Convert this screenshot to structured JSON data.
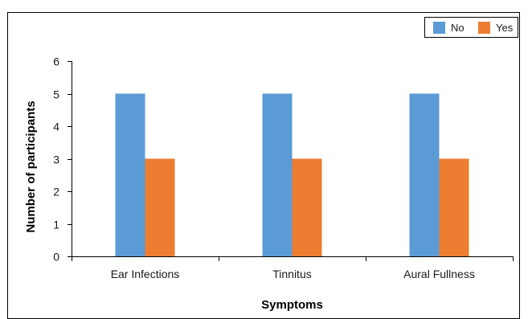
{
  "colors": {
    "frame": "#000000",
    "axis": "#000000",
    "series_no": "#5B9BD5",
    "series_yes": "#ED7D31"
  },
  "chart_data": {
    "type": "bar",
    "categories": [
      "Ear Infections",
      "Tinnitus",
      "Aural Fullness"
    ],
    "series": [
      {
        "name": "No",
        "values": [
          5,
          5,
          5
        ],
        "color": "#5B9BD5"
      },
      {
        "name": "Yes",
        "values": [
          3,
          3,
          3
        ],
        "color": "#ED7D31"
      }
    ],
    "yticks": [
      0,
      1,
      2,
      3,
      4,
      5,
      6
    ],
    "ylim": [
      0,
      6
    ],
    "xlabel": "Symptoms",
    "ylabel": "Number of participants",
    "grid": false,
    "legend_position": "top-right"
  }
}
